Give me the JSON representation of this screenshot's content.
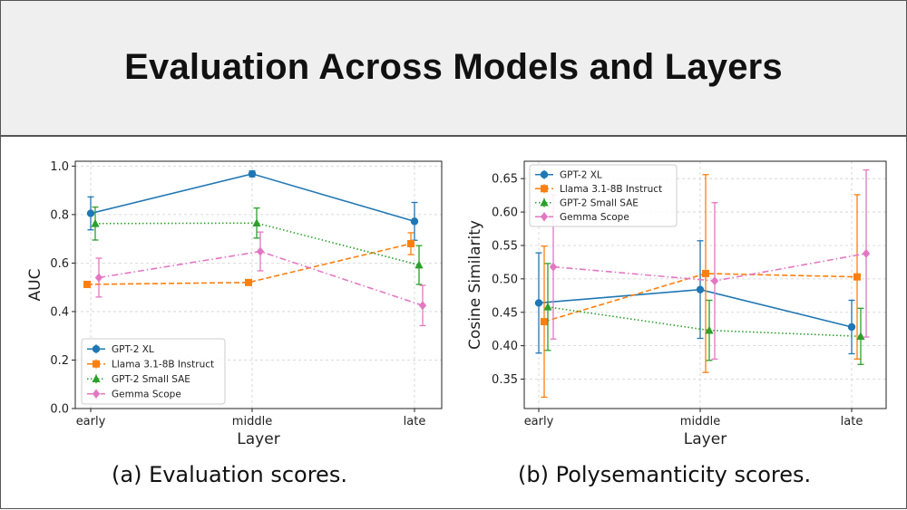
{
  "header": {
    "title": "Evaluation Across Models and Layers"
  },
  "captions": {
    "left": "(a) Evaluation scores.",
    "right": "(b) Polysemanticity scores."
  },
  "chart_data": [
    {
      "type": "line",
      "title": "",
      "xlabel": "Layer",
      "ylabel": "AUC",
      "categories": [
        "early",
        "middle",
        "late"
      ],
      "ylim": [
        0.0,
        1.02
      ],
      "yticks": [
        "0.0",
        "0.2",
        "0.4",
        "0.6",
        "0.8",
        "1.0"
      ],
      "ytick_values": [
        0.0,
        0.2,
        0.4,
        0.6,
        0.8,
        1.0
      ],
      "grid": true,
      "legend_position": "bottom-left",
      "series": [
        {
          "name": "GPT-2 XL",
          "color": "#1f77b4",
          "marker": "circle",
          "linestyle": "solid",
          "values": [
            0.805,
            0.968,
            0.772
          ],
          "errors": [
            0.068,
            0.012,
            0.078
          ]
        },
        {
          "name": "Llama 3.1-8B Instruct",
          "color": "#ff7f0e",
          "marker": "square",
          "linestyle": "dashed",
          "values": [
            0.512,
            0.52,
            0.68
          ],
          "errors": [
            0.0,
            0.0,
            0.045
          ]
        },
        {
          "name": "GPT-2 Small SAE",
          "color": "#2ca02c",
          "marker": "triangle",
          "linestyle": "dotted",
          "values": [
            0.763,
            0.765,
            0.592
          ],
          "errors": [
            0.068,
            0.062,
            0.08
          ]
        },
        {
          "name": "Gemma Scope",
          "color": "#e377c2",
          "marker": "diamond",
          "linestyle": "dashdot",
          "values": [
            0.54,
            0.648,
            0.425
          ],
          "errors": [
            0.08,
            0.08,
            0.083
          ]
        }
      ]
    },
    {
      "type": "line",
      "title": "",
      "xlabel": "Layer",
      "ylabel": "Cosine Similarity",
      "categories": [
        "early",
        "middle",
        "late"
      ],
      "ylim": [
        0.306,
        0.676
      ],
      "yticks": [
        "0.35",
        "0.40",
        "0.45",
        "0.50",
        "0.55",
        "0.60",
        "0.65"
      ],
      "ytick_values": [
        0.35,
        0.4,
        0.45,
        0.5,
        0.55,
        0.6,
        0.65
      ],
      "grid": true,
      "legend_position": "top-left",
      "series": [
        {
          "name": "GPT-2 XL",
          "color": "#1f77b4",
          "marker": "circle",
          "linestyle": "solid",
          "values": [
            0.464,
            0.484,
            0.428
          ],
          "errors": [
            0.075,
            0.073,
            0.04
          ]
        },
        {
          "name": "Llama 3.1-8B Instruct",
          "color": "#ff7f0e",
          "marker": "square",
          "linestyle": "dashed",
          "values": [
            0.436,
            0.508,
            0.503
          ],
          "errors": [
            0.113,
            0.148,
            0.123
          ]
        },
        {
          "name": "GPT-2 Small SAE",
          "color": "#2ca02c",
          "marker": "triangle",
          "linestyle": "dotted",
          "values": [
            0.458,
            0.423,
            0.414
          ],
          "errors": [
            0.065,
            0.045,
            0.042
          ]
        },
        {
          "name": "Gemma Scope",
          "color": "#e377c2",
          "marker": "diamond",
          "linestyle": "dashdot",
          "values": [
            0.518,
            0.497,
            0.538
          ],
          "errors": [
            0.108,
            0.117,
            0.125
          ]
        }
      ]
    }
  ]
}
